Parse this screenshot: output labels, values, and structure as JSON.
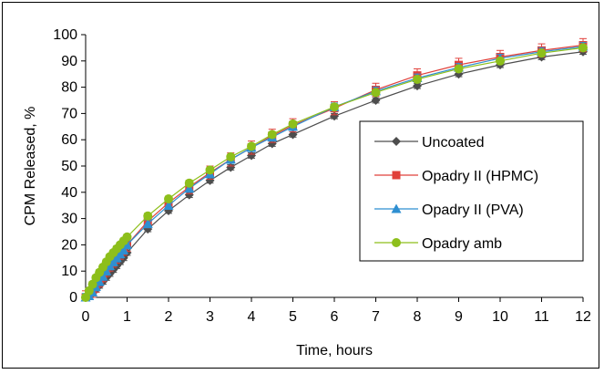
{
  "chart_data": {
    "type": "line",
    "xlabel": "Time, hours",
    "ylabel": "CPM Released, %",
    "xlim": [
      0,
      12
    ],
    "ylim": [
      0,
      100
    ],
    "xticks": [
      0,
      1,
      2,
      3,
      4,
      5,
      6,
      7,
      8,
      9,
      10,
      11,
      12
    ],
    "yticks": [
      0,
      10,
      20,
      30,
      40,
      50,
      60,
      70,
      80,
      90,
      100
    ],
    "grid": false,
    "legend_position": "center-right",
    "series": [
      {
        "name": "Uncoated",
        "color": "#4d4d4d",
        "marker": "diamond",
        "x": [
          0,
          0.083,
          0.167,
          0.25,
          0.333,
          0.417,
          0.5,
          0.583,
          0.667,
          0.75,
          0.833,
          0.917,
          1,
          1.5,
          2,
          2.5,
          3,
          3.5,
          4,
          4.5,
          5,
          6,
          7,
          8,
          9,
          10,
          11,
          12
        ],
        "y": [
          0,
          0.5,
          1.5,
          3,
          4.5,
          6,
          7.5,
          9,
          10.5,
          12,
          13.5,
          15,
          17,
          26,
          33,
          39,
          44.5,
          49.5,
          54,
          58.5,
          62,
          69,
          75,
          80.5,
          85,
          88.5,
          91.5,
          93.5
        ],
        "error": 1
      },
      {
        "name": "Opadry II (HPMC)",
        "color": "#e0403a",
        "marker": "square",
        "x": [
          0,
          0.083,
          0.167,
          0.25,
          0.333,
          0.417,
          0.5,
          0.583,
          0.667,
          0.75,
          0.833,
          0.917,
          1,
          1.5,
          2,
          2.5,
          3,
          3.5,
          4,
          4.5,
          5,
          6,
          7,
          8,
          9,
          10,
          11,
          12
        ],
        "y": [
          0,
          0.8,
          2.5,
          4.5,
          6.5,
          8.5,
          10.5,
          12.5,
          14,
          15.5,
          17,
          18.5,
          20,
          29,
          36,
          42,
          47.5,
          52.5,
          57,
          61.5,
          65.5,
          72,
          79,
          84.5,
          88.5,
          91.5,
          94,
          96
        ],
        "error": 2.5
      },
      {
        "name": "Opadry II (PVA)",
        "color": "#2f8fd1",
        "marker": "triangle",
        "x": [
          0,
          0.083,
          0.167,
          0.25,
          0.333,
          0.417,
          0.5,
          0.583,
          0.667,
          0.75,
          0.833,
          0.917,
          1,
          1.5,
          2,
          2.5,
          3,
          3.5,
          4,
          4.5,
          5,
          6,
          7,
          8,
          9,
          10,
          11,
          12
        ],
        "y": [
          0,
          0.5,
          2,
          4,
          6,
          8,
          10,
          12,
          13.5,
          15,
          16.5,
          18,
          20,
          28,
          35,
          41.5,
          47,
          52.5,
          57,
          61,
          65,
          72.5,
          78.5,
          83.5,
          87.5,
          91,
          93.5,
          95.5
        ],
        "error": 1.5
      },
      {
        "name": "Opadry amb",
        "color": "#8dbf1b",
        "marker": "circle",
        "x": [
          0,
          0.083,
          0.167,
          0.25,
          0.333,
          0.417,
          0.5,
          0.583,
          0.667,
          0.75,
          0.833,
          0.917,
          1,
          1.5,
          2,
          2.5,
          3,
          3.5,
          4,
          4.5,
          5,
          6,
          7,
          8,
          9,
          10,
          11,
          12
        ],
        "y": [
          0,
          2.5,
          5,
          7.5,
          9.5,
          11.5,
          13.5,
          15.5,
          17,
          18.5,
          20,
          21.5,
          23,
          31,
          37.5,
          43.5,
          48.5,
          53.5,
          57.5,
          62,
          66,
          72.5,
          78,
          83,
          87,
          90,
          93,
          95
        ],
        "error": 1
      }
    ]
  }
}
